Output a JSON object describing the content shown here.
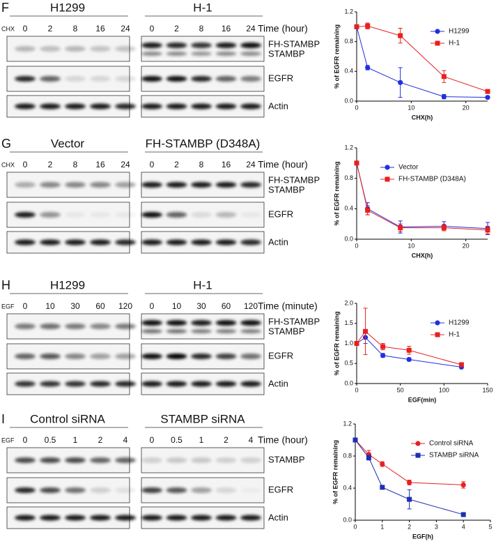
{
  "panels": [
    {
      "letter": "F",
      "treatment": "CHX",
      "left_title": "H1299",
      "right_title": "H-1",
      "left_times": [
        "0",
        "2",
        "8",
        "16",
        "24"
      ],
      "right_times": [
        "0",
        "2",
        "8",
        "16",
        "24"
      ],
      "time_unit": "Time (hour)",
      "band_labels": [
        "FH-STAMBP",
        "STAMBP",
        "EGFR",
        "Actin"
      ]
    },
    {
      "letter": "G",
      "treatment": "CHX",
      "left_title": "Vector",
      "right_title": "FH-STAMBP (D348A)",
      "left_times": [
        "0",
        "2",
        "8",
        "16",
        "24"
      ],
      "right_times": [
        "0",
        "2",
        "8",
        "16",
        "24"
      ],
      "time_unit": "Time (hour)",
      "band_labels": [
        "FH-STAMBP",
        "STAMBP",
        "EGFR",
        "Actin"
      ]
    },
    {
      "letter": "H",
      "treatment": "EGF",
      "left_title": "H1299",
      "right_title": "H-1",
      "left_times": [
        "0",
        "10",
        "30",
        "60",
        "120"
      ],
      "right_times": [
        "0",
        "10",
        "30",
        "60",
        "120"
      ],
      "time_unit": "Time (minute)",
      "band_labels": [
        "FH-STAMBP",
        "STAMBP",
        "EGFR",
        "Actin"
      ]
    },
    {
      "letter": "I",
      "treatment": "EGF",
      "left_title": "Control siRNA",
      "right_title": "STAMBP siRNA",
      "left_times": [
        "0",
        "0.5",
        "1",
        "2",
        "4"
      ],
      "right_times": [
        "0",
        "0.5",
        "1",
        "2",
        "4"
      ],
      "time_unit": "Time (hour)",
      "band_labels": [
        "STAMBP",
        "EGFR",
        "Actin"
      ]
    }
  ],
  "chart_data": [
    {
      "type": "line",
      "xlabel": "CHX(h)",
      "ylabel": "% of EGFR remaining",
      "x": [
        0,
        2,
        8,
        16,
        24
      ],
      "xlim": [
        0,
        24
      ],
      "xticks": [
        0,
        10,
        20
      ],
      "ylim": [
        0,
        1.2
      ],
      "yticks": [
        {
          "value": 0,
          "label": "0.0"
        },
        {
          "value": 0.4,
          "label": "0.4"
        },
        {
          "value": 0.8,
          "label": "0.8"
        },
        {
          "value": 1.2,
          "label": "1.2"
        }
      ],
      "legend": "upper right",
      "series": [
        {
          "name": "H1299",
          "color": "#1f2fe0",
          "marker": "circle",
          "values": [
            1.0,
            0.45,
            0.25,
            0.06,
            0.05
          ],
          "errors": [
            0,
            0.03,
            0.2,
            0.03,
            0
          ]
        },
        {
          "name": "H-1",
          "color": "#e8201f",
          "marker": "square",
          "values": [
            1.0,
            1.01,
            0.88,
            0.33,
            0.13
          ],
          "errors": [
            0,
            0.04,
            0.1,
            0.08,
            0
          ]
        }
      ]
    },
    {
      "type": "line",
      "xlabel": "CHX(h)",
      "ylabel": "% of EGFR remaining",
      "x": [
        0,
        2,
        8,
        16,
        24
      ],
      "xlim": [
        0,
        24
      ],
      "xticks": [
        0,
        10,
        20
      ],
      "ylim": [
        0,
        1.2
      ],
      "yticks": [
        {
          "value": 0,
          "label": "0.0"
        },
        {
          "value": 0.4,
          "label": "0.4"
        },
        {
          "value": 0.8,
          "label": "0.8"
        },
        {
          "value": 1.2,
          "label": "1.2"
        }
      ],
      "legend": "upper right",
      "series": [
        {
          "name": "Vector",
          "color": "#1f2fe0",
          "marker": "circle",
          "values": [
            1.0,
            0.4,
            0.16,
            0.17,
            0.14
          ],
          "errors": [
            0,
            0.08,
            0.08,
            0.06,
            0.08
          ]
        },
        {
          "name": "FH-STAMBP (D348A)",
          "color": "#e8201f",
          "marker": "square",
          "values": [
            1.0,
            0.38,
            0.15,
            0.15,
            0.12
          ],
          "errors": [
            0,
            0.06,
            0.05,
            0.04,
            0.05
          ]
        }
      ]
    },
    {
      "type": "line",
      "xlabel": "EGF(min)",
      "ylabel": "% of EGFR remaining",
      "x": [
        0,
        10,
        30,
        60,
        120
      ],
      "xlim": [
        0,
        150
      ],
      "xticks": [
        0,
        50,
        100,
        150
      ],
      "ylim": [
        0,
        2.0
      ],
      "yticks": [
        {
          "value": 0,
          "label": "0.0"
        },
        {
          "value": 0.5,
          "label": "0.5"
        },
        {
          "value": 1.0,
          "label": "1.0"
        },
        {
          "value": 1.5,
          "label": "1.5"
        },
        {
          "value": 2.0,
          "label": "2.0"
        }
      ],
      "legend": "upper right",
      "series": [
        {
          "name": "H1299",
          "color": "#1f2fe0",
          "marker": "circle",
          "values": [
            1.0,
            1.15,
            0.7,
            0.6,
            0.41
          ],
          "errors": [
            0,
            0.15,
            0.05,
            0.04,
            0.02
          ]
        },
        {
          "name": "H-1",
          "color": "#e8201f",
          "marker": "square",
          "values": [
            1.0,
            1.3,
            0.92,
            0.83,
            0.47
          ],
          "errors": [
            0,
            0.58,
            0.08,
            0.1,
            0.03
          ]
        }
      ]
    },
    {
      "type": "line",
      "xlabel": "EGF(h)",
      "ylabel": "% of EGFR remaining",
      "x": [
        0,
        0.5,
        1,
        2,
        4
      ],
      "xlim": [
        0,
        5
      ],
      "xticks": [
        0,
        1,
        2,
        3,
        4,
        5
      ],
      "ylim": [
        0,
        1.2
      ],
      "yticks": [
        {
          "value": 0,
          "label": "0.0"
        },
        {
          "value": 0.4,
          "label": "0.4"
        },
        {
          "value": 0.8,
          "label": "0.8"
        },
        {
          "value": 1.2,
          "label": "1.2"
        }
      ],
      "legend": "upper right",
      "series": [
        {
          "name": "Control siRNA",
          "color": "#e8201f",
          "marker": "circle",
          "values": [
            1.0,
            0.82,
            0.7,
            0.47,
            0.44
          ],
          "errors": [
            0,
            0.05,
            0.03,
            0.03,
            0.04
          ]
        },
        {
          "name": "STAMBP siRNA",
          "color": "#1f2fb0",
          "marker": "square",
          "values": [
            1.0,
            0.78,
            0.41,
            0.26,
            0.07
          ],
          "errors": [
            0,
            0.03,
            0,
            0.12,
            0.02
          ]
        }
      ]
    }
  ]
}
